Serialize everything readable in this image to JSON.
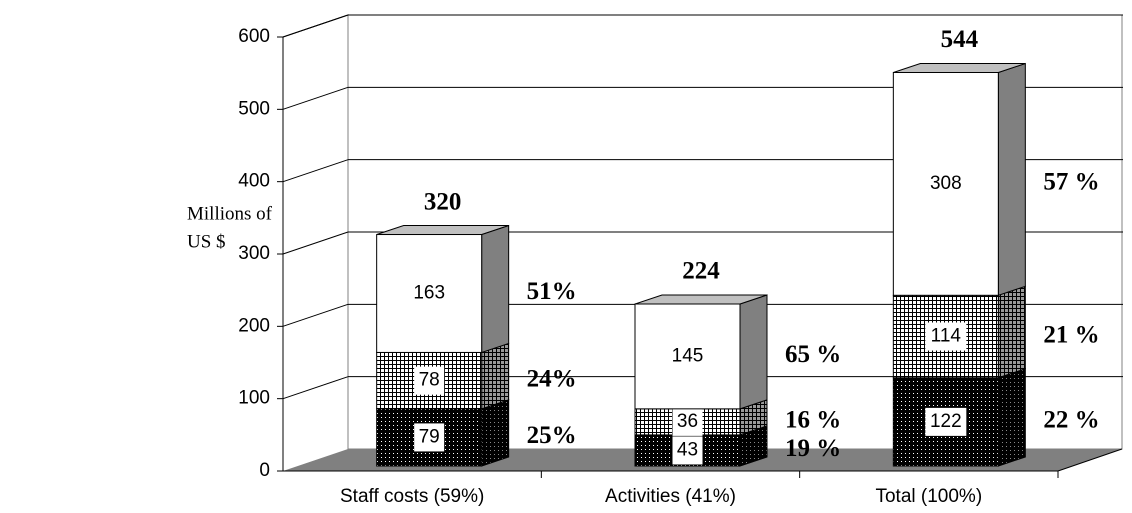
{
  "chart_data": {
    "type": "bar3d_stacked",
    "ylabel": [
      "Millions of",
      "US $"
    ],
    "categories": [
      "Staff costs (59%)",
      "Activities (41%)",
      "Total (100%)"
    ],
    "series": [
      {
        "color": "#000000",
        "pattern": "dots",
        "values": [
          79,
          43,
          122
        ],
        "share_labels": [
          "25%",
          "19 %",
          "22 %"
        ]
      },
      {
        "color": "#ffffff",
        "pattern": "grid",
        "values": [
          78,
          36,
          114
        ],
        "share_labels": [
          "24%",
          "16 %",
          "21 %"
        ]
      },
      {
        "color": "#ffffff",
        "pattern": "none",
        "values": [
          163,
          145,
          308
        ],
        "share_labels": [
          "51%",
          "65 %",
          "57 %"
        ]
      }
    ],
    "totals": [
      320,
      224,
      544
    ],
    "ylim": [
      0,
      600
    ],
    "yticks": [
      0,
      100,
      200,
      300,
      400,
      500,
      600
    ],
    "grid": true
  }
}
